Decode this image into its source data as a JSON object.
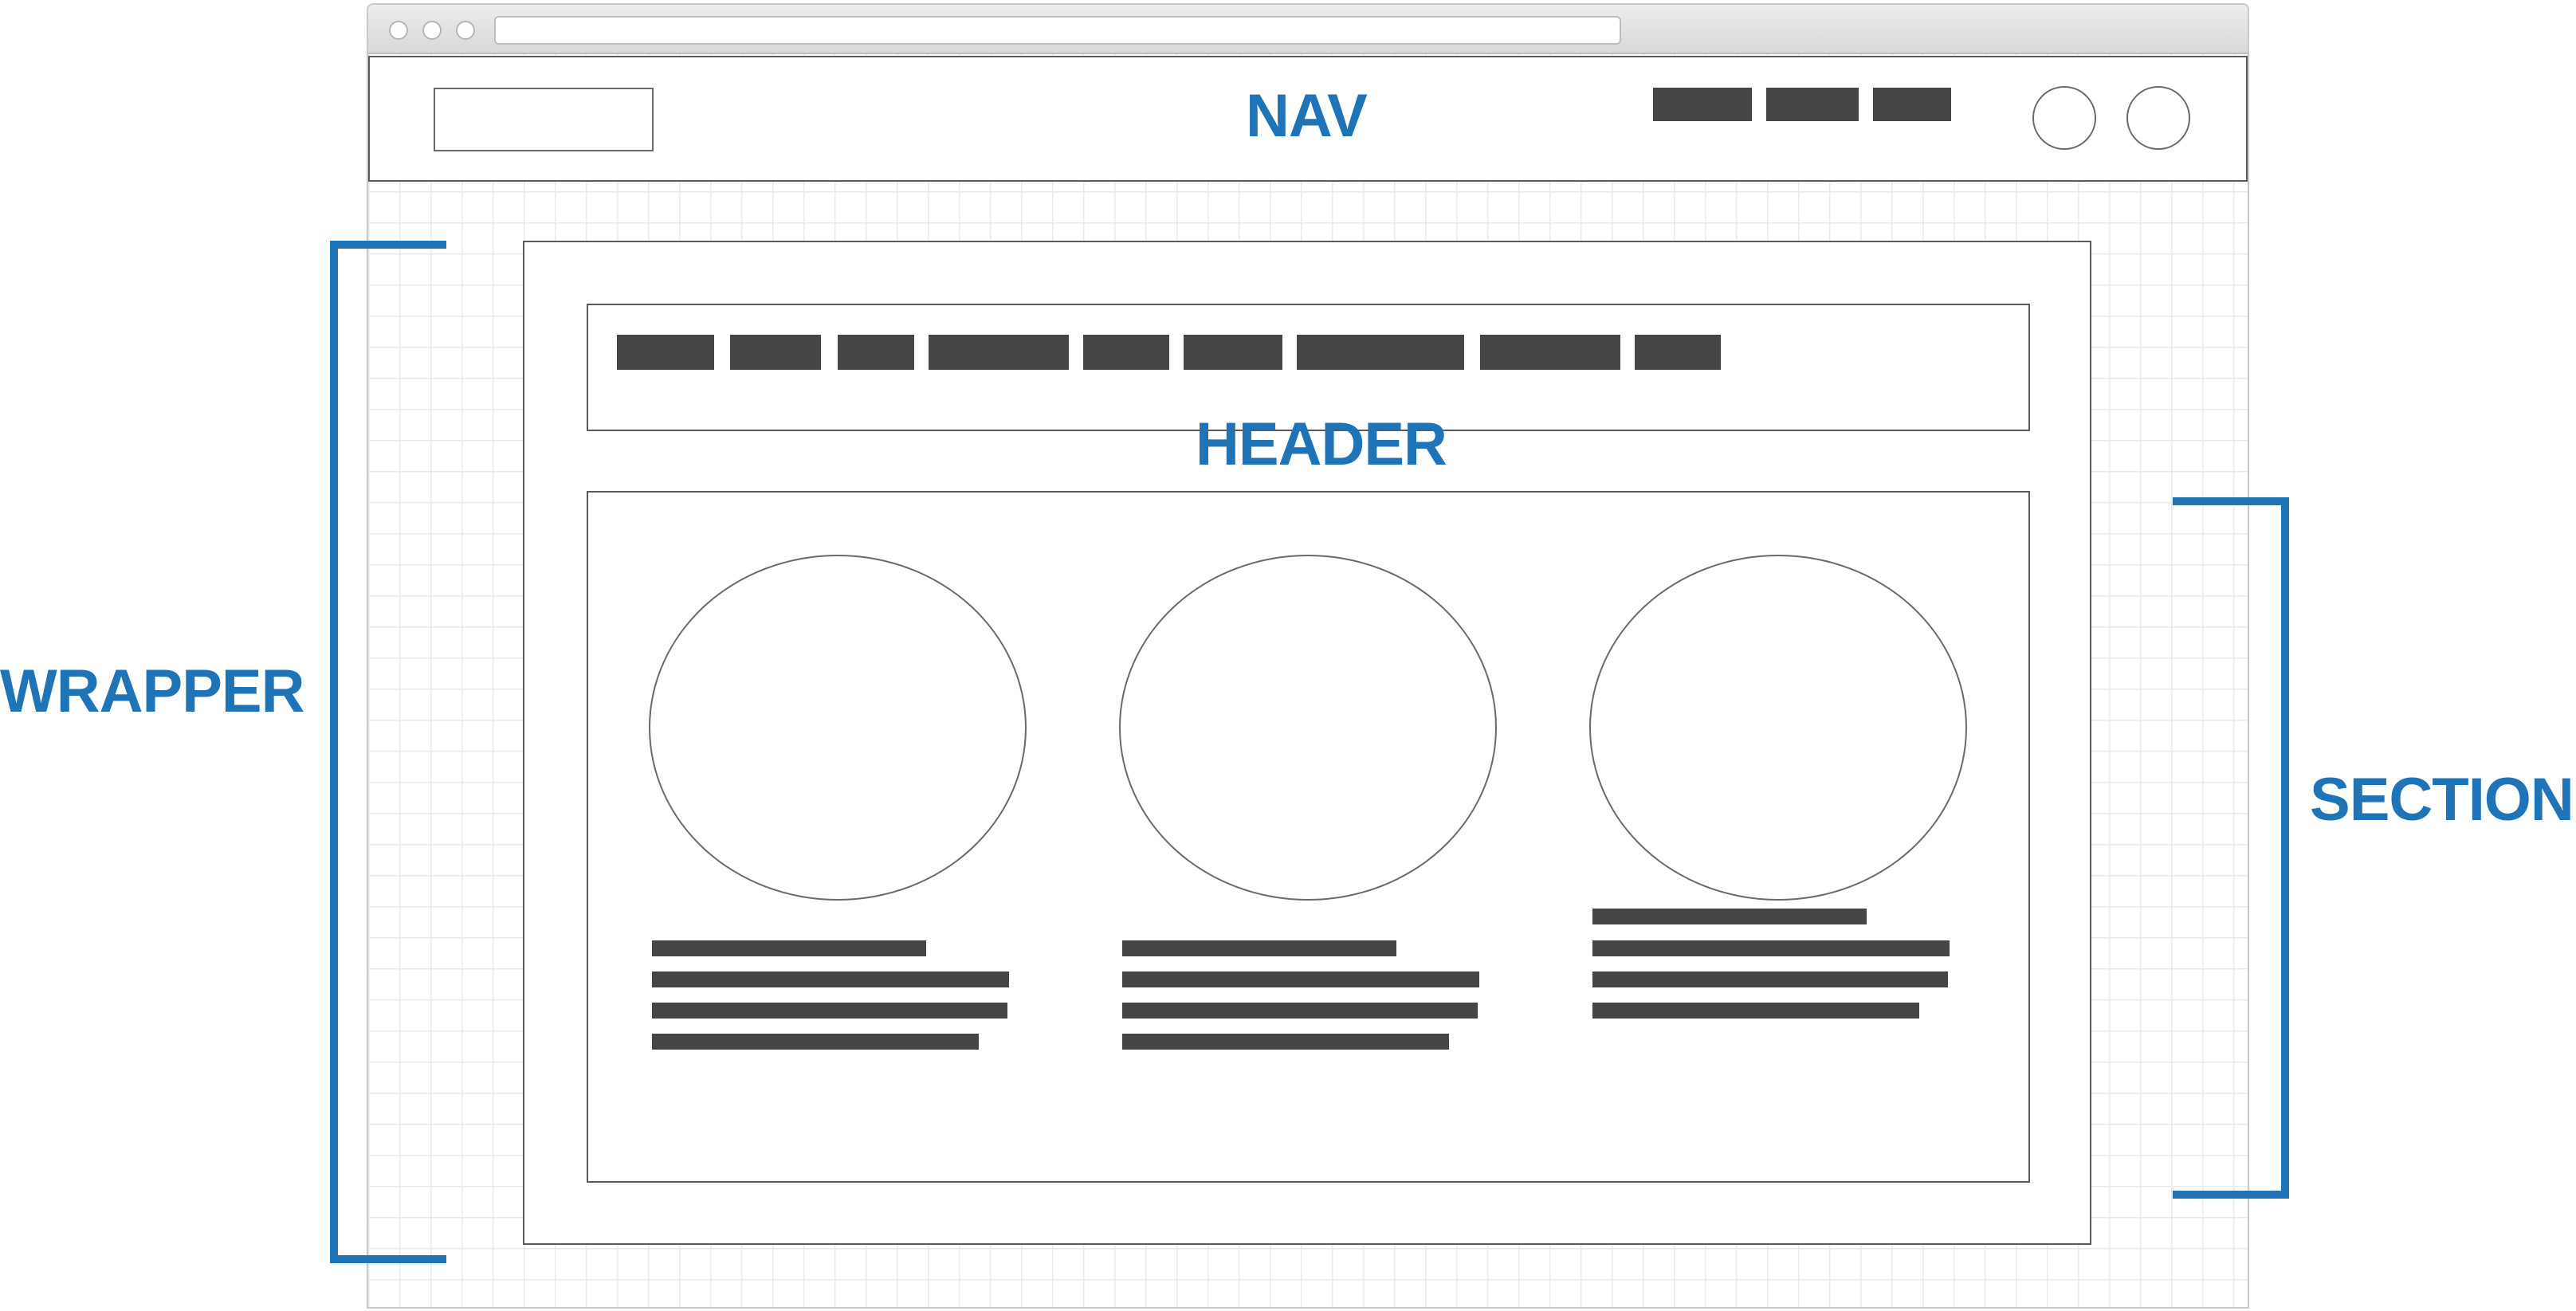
{
  "labels": {
    "nav": "NAV",
    "header": "HEADER",
    "wrapper": "WRAPPER",
    "section": "SECTION"
  },
  "colors": {
    "accent": "#1f73b7",
    "placeholder_fill": "#454545",
    "outline": "#5a5a5a",
    "grid": "#e9e9e9"
  },
  "browser": {
    "icons": [
      "traffic-light",
      "traffic-light",
      "traffic-light"
    ],
    "url_value": ""
  },
  "nav": {
    "link_count": 3,
    "icon_buttons": [
      "circle-icon",
      "circle-icon"
    ]
  },
  "header": {
    "link_count": 9
  },
  "section": {
    "columns": [
      {
        "text_lines": 4
      },
      {
        "text_lines": 4
      },
      {
        "text_lines": 4
      }
    ]
  }
}
